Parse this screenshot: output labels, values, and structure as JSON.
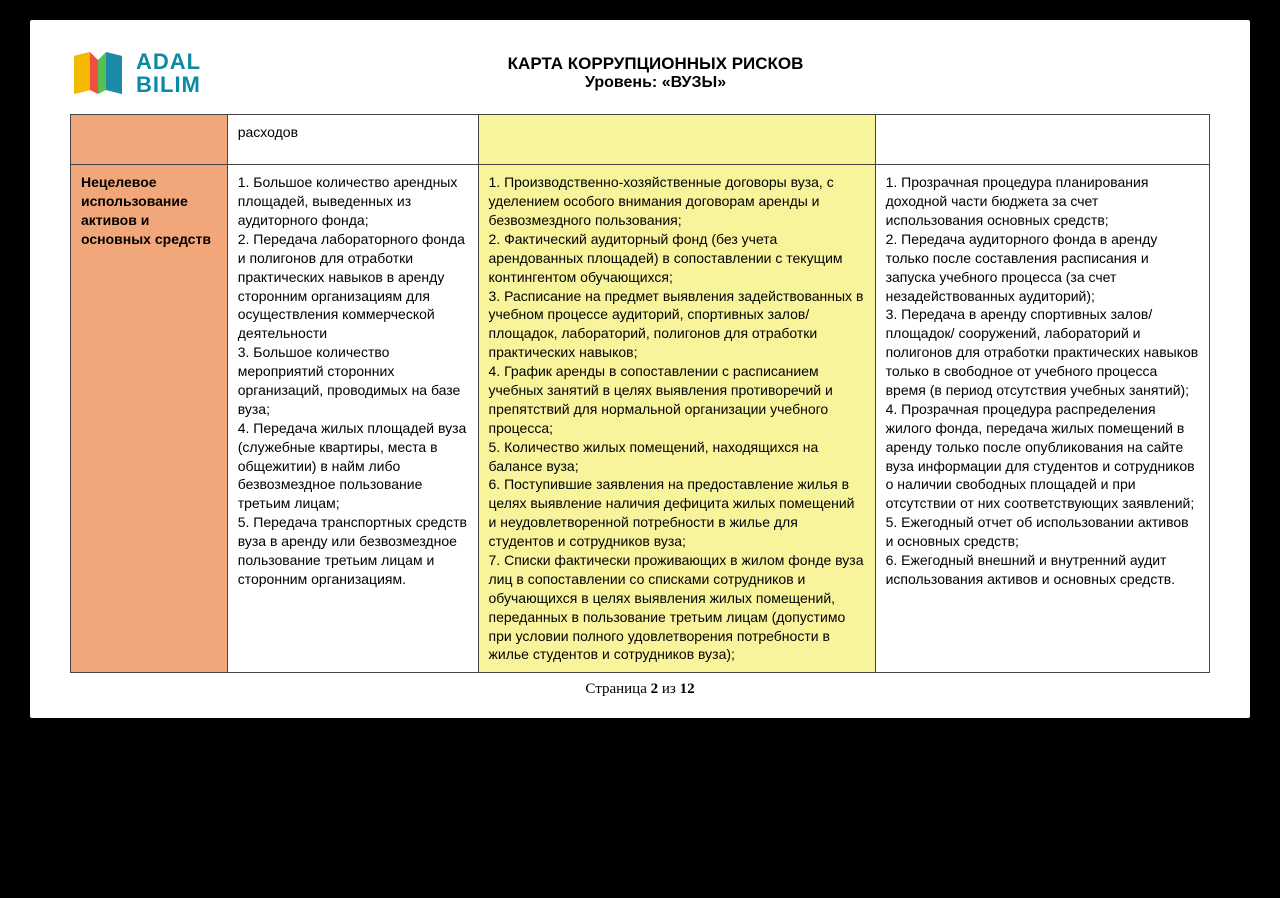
{
  "brand": {
    "line1": "ADAL",
    "line2": "BILIM"
  },
  "title": {
    "main": "КАРТА КОРРУПЦИОННЫХ РИСКОВ",
    "sub": "Уровень: «ВУЗЫ»"
  },
  "colors": {
    "risk_bg": "#f2a77a",
    "indicator_bg": "#f8f49c",
    "border": "#444444",
    "brand": "#0a8aa3"
  },
  "table": {
    "rows": [
      {
        "risk": "",
        "factors": "расходов",
        "indicators": "",
        "measures": ""
      },
      {
        "risk": "Нецелевое использование активов и основных средств",
        "factors": "1. Большое количество арендных площадей, выведенных из аудиторного фонда;\n2. Передача лабораторного фонда и полигонов для отработки практических навыков в аренду сторонним организациям для осуществления коммерческой деятельности\n3. Большое количество мероприятий сторонних организаций, проводимых на базе вуза;\n4. Передача жилых площадей вуза (служебные квартиры, места в общежитии) в найм либо безвозмездное пользование третьим лицам;\n5. Передача транспортных средств вуза в аренду или безвозмездное пользование третьим лицам и сторонним организациям.",
        "indicators": "1. Производственно-хозяйственные договоры вуза, с уделением особого внимания договорам аренды и безвозмездного пользования;\n2. Фактический аудиторный фонд (без учета арендованных площадей) в сопоставлении с текущим контингентом обучающихся;\n3. Расписание на предмет выявления задействованных в учебном процессе аудиторий, спортивных залов/площадок, лабораторий, полигонов для отработки практических навыков;\n4. График аренды в сопоставлении с расписанием учебных занятий в целях выявления противоречий и препятствий для нормальной организации учебного процесса;\n5. Количество жилых помещений, находящихся на балансе вуза;\n6. Поступившие заявления на предоставление жилья в целях выявление наличия дефицита жилых помещений и неудовлетворенной потребности в жилье для студентов и сотрудников вуза;\n7. Списки фактически проживающих в жилом фонде вуза лиц в сопоставлении со списками сотрудников и обучающихся в целях выявления жилых помещений, переданных в пользование третьим лицам (допустимо при условии полного удовлетворения потребности в жилье студентов и сотрудников вуза);",
        "measures": "1. Прозрачная процедура планирования доходной части бюджета за счет использования основных средств;\n2. Передача аудиторного фонда в аренду только после составления расписания и запуска учебного процесса (за счет незадействованных аудиторий);\n3. Передача в аренду спортивных залов/площадок/ сооружений, лабораторий и полигонов для отработки практических навыков только в свободное от учебного процесса время (в период отсутствия учебных занятий);\n4. Прозрачная процедура распределения жилого фонда, передача жилых помещений в аренду только после опубликования на сайте вуза информации для студентов и сотрудников о наличии свободных площадей и при отсутствии от них соответствующих заявлений;\n5. Ежегодный отчет об использовании активов и основных средств;\n6. Ежегодный внешний и внутренний аудит использования активов и основных средств."
      }
    ]
  },
  "footer": {
    "prefix": "Страница ",
    "current": "2",
    "sep": " из ",
    "total": "12"
  }
}
